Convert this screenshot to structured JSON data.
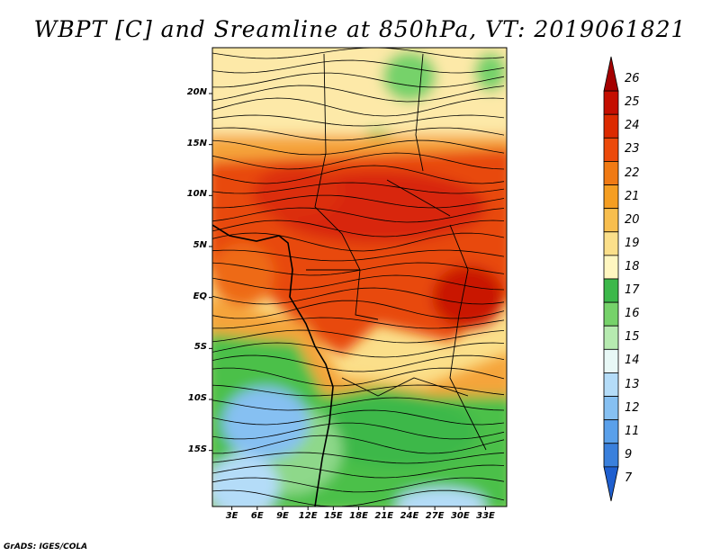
{
  "title": "WBPT [C] and Sreamline at 850hPa, VT: 2019061821",
  "credit": "GrADS: IGES/COLA",
  "map": {
    "variable": "Wet-bulb potential temperature (WBPT) with streamlines",
    "level": "850hPa",
    "valid_time": "2019061821",
    "lat_labels": [
      "20N",
      "15N",
      "10N",
      "5N",
      "EQ",
      "5S",
      "10S",
      "15S"
    ],
    "lon_labels": [
      "3E",
      "6E",
      "9E",
      "12E",
      "15E",
      "18E",
      "21E",
      "24E",
      "27E",
      "30E",
      "33E"
    ]
  },
  "legend": {
    "levels": [
      "26",
      "25",
      "24",
      "23",
      "22",
      "21",
      "20",
      "19",
      "18",
      "17",
      "16",
      "15",
      "14",
      "13",
      "12",
      "11",
      "9",
      "7"
    ],
    "colors": [
      "#a50000",
      "#c40e00",
      "#dc2a00",
      "#ec4a0a",
      "#f07a14",
      "#f59e22",
      "#f8be4e",
      "#fbdf8a",
      "#fff6c0",
      "#3cb84a",
      "#76d26a",
      "#b6eab0",
      "#e8f8f6",
      "#b4dcf8",
      "#86c0f2",
      "#5aa0ea",
      "#3a80dc",
      "#1f5fcf"
    ]
  }
}
